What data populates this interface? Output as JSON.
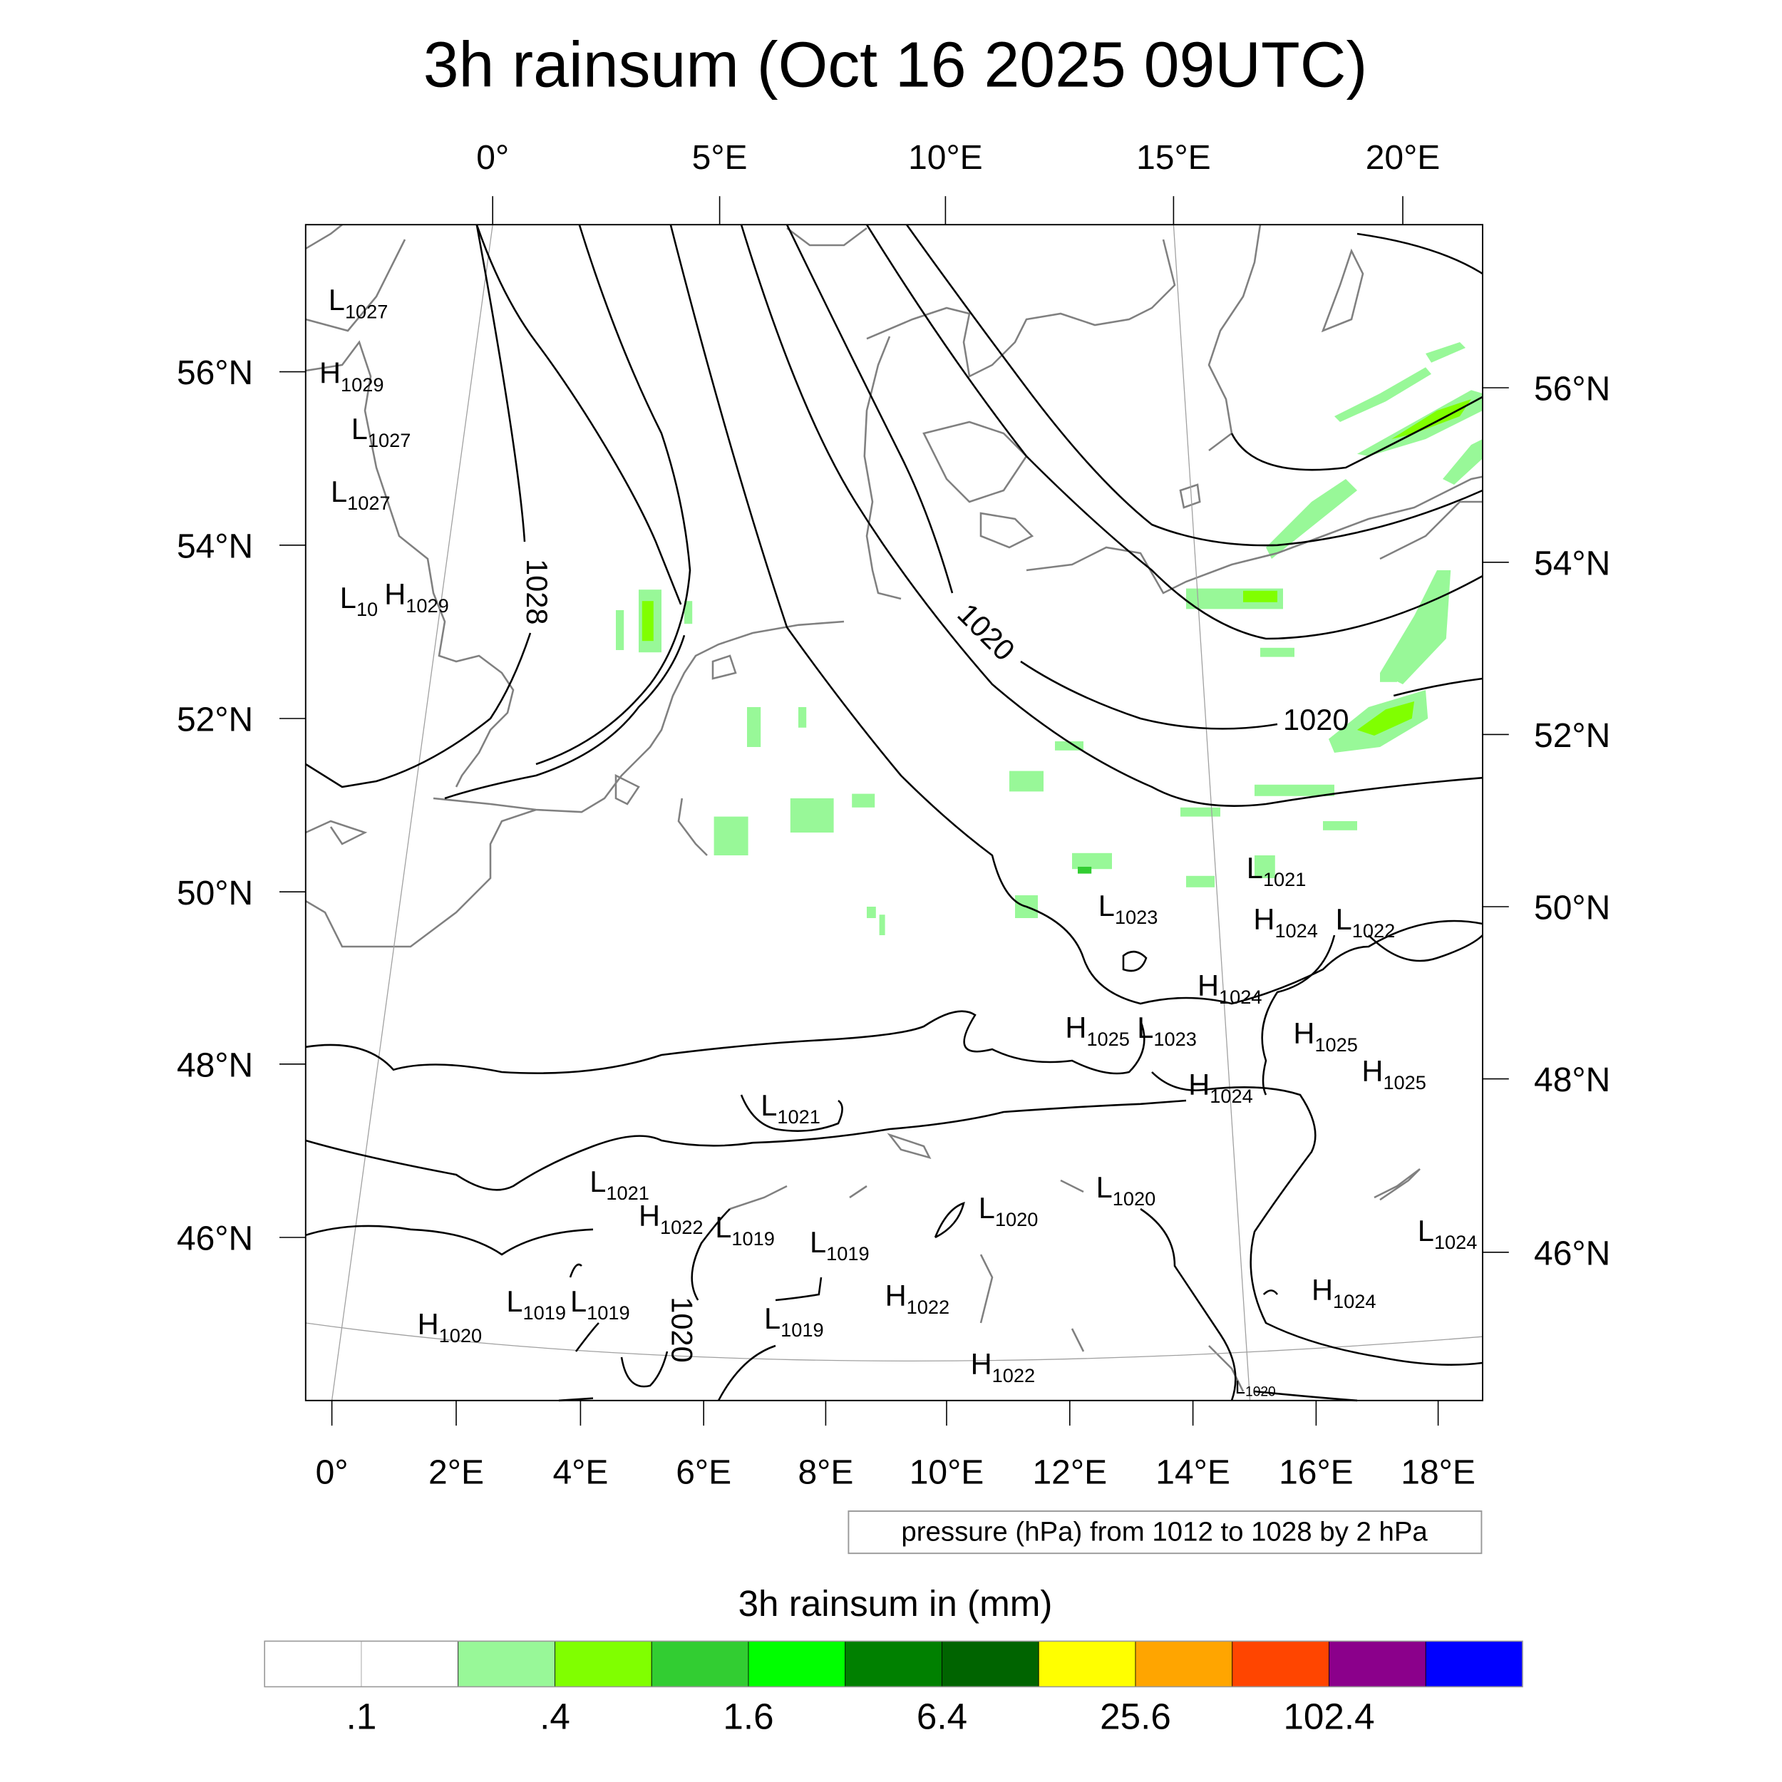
{
  "title": "3h rainsum (Oct 16 2025 09UTC)",
  "top_lon_labels": [
    "0°",
    "5°E",
    "10°E",
    "15°E",
    "20°E"
  ],
  "left_lat_labels": [
    "56°N",
    "54°N",
    "52°N",
    "50°N",
    "48°N",
    "46°N"
  ],
  "right_lat_labels": [
    "56°N",
    "54°N",
    "52°N",
    "50°N",
    "48°N",
    "46°N"
  ],
  "bottom_lon_labels": [
    "0°",
    "2°E",
    "4°E",
    "6°E",
    "8°E",
    "10°E",
    "12°E",
    "14°E",
    "16°E",
    "18°E"
  ],
  "contour_labels": [
    "1028",
    "1020",
    "1020",
    "1020"
  ],
  "pressure_centers": [
    {
      "type": "L",
      "value": "1027"
    },
    {
      "type": "H",
      "value": "1029"
    },
    {
      "type": "L",
      "value": "1027"
    },
    {
      "type": "L",
      "value": "1027"
    },
    {
      "type": "L",
      "value": "10"
    },
    {
      "type": "H",
      "value": "1029"
    },
    {
      "type": "L",
      "value": "1023"
    },
    {
      "type": "L",
      "value": "1021"
    },
    {
      "type": "H",
      "value": "1024"
    },
    {
      "type": "L",
      "value": "1022"
    },
    {
      "type": "H",
      "value": "1024"
    },
    {
      "type": "H",
      "value": "1025"
    },
    {
      "type": "L",
      "value": "1023"
    },
    {
      "type": "H",
      "value": "1025"
    },
    {
      "type": "H",
      "value": "1024"
    },
    {
      "type": "H",
      "value": "1025"
    },
    {
      "type": "L",
      "value": "1021"
    },
    {
      "type": "L",
      "value": "1021"
    },
    {
      "type": "H",
      "value": "1022"
    },
    {
      "type": "L",
      "value": "1019"
    },
    {
      "type": "L",
      "value": "1019"
    },
    {
      "type": "L",
      "value": "1020"
    },
    {
      "type": "L",
      "value": "1020"
    },
    {
      "type": "L",
      "value": "1024"
    },
    {
      "type": "L",
      "value": "1019"
    },
    {
      "type": "L",
      "value": "1019"
    },
    {
      "type": "H",
      "value": "1020"
    },
    {
      "type": "L",
      "value": "1019"
    },
    {
      "type": "H",
      "value": "1022"
    },
    {
      "type": "H",
      "value": "1024"
    },
    {
      "type": "H",
      "value": "1022"
    },
    {
      "type": "L",
      "value": "1020"
    }
  ],
  "legend_text": "pressure (hPa) from 1012 to 1028 by 2 hPa",
  "colorbar": {
    "title": "3h rainsum in (mm)",
    "colors": [
      "#ffffff",
      "#ffffff",
      "#98f898",
      "#80ff00",
      "#32cd32",
      "#00ff00",
      "#008000",
      "#006400",
      "#ffff00",
      "#ffa500",
      "#ff4500",
      "#8b008b",
      "#0000ff"
    ],
    "labels": [
      ".1",
      ".4",
      "1.6",
      "6.4",
      "25.6",
      "102.4"
    ]
  }
}
